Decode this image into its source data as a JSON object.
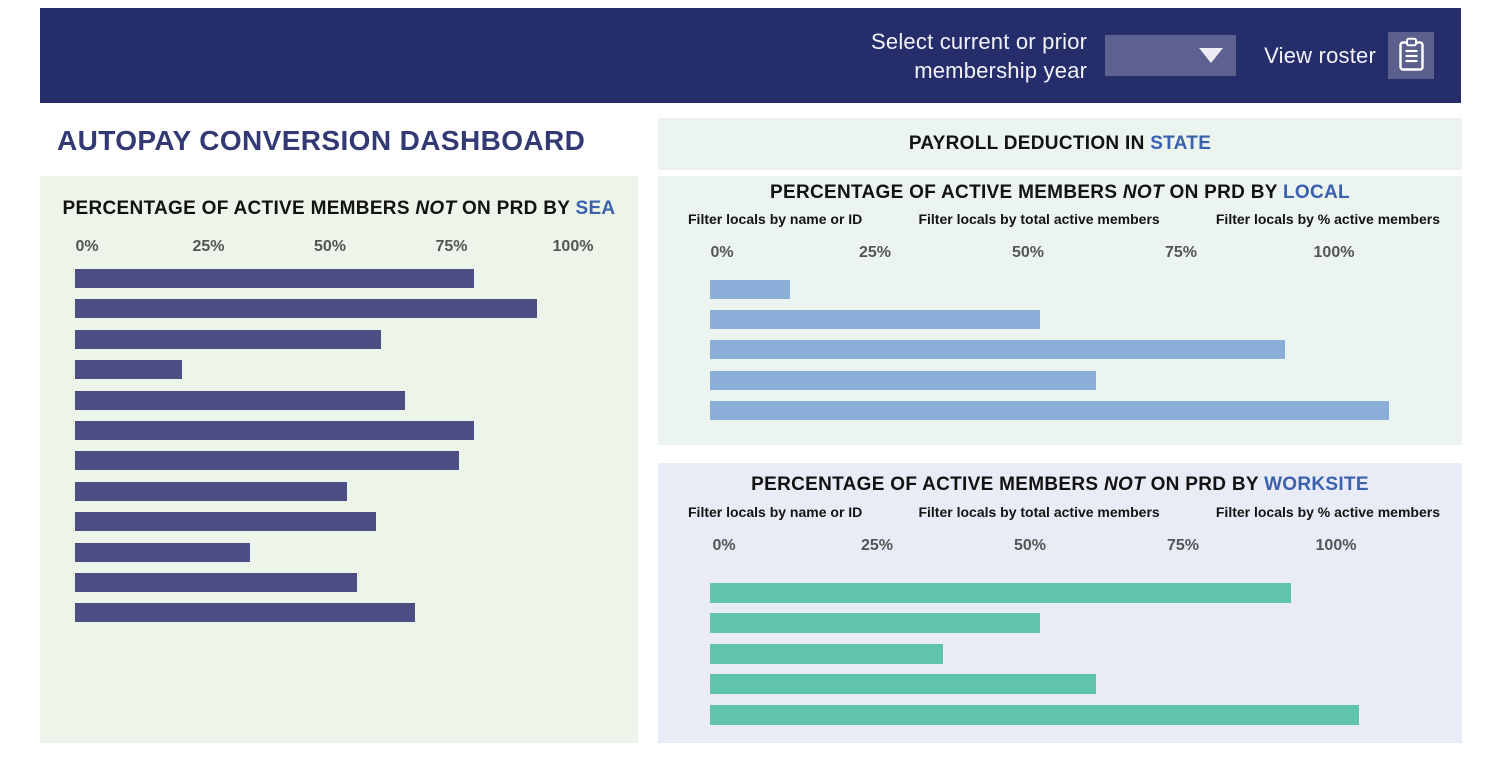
{
  "header": {
    "select_label_line1": "Select current or prior",
    "select_label_line2": "membership year",
    "dropdown_value": "",
    "view_roster_label": "View roster"
  },
  "page_title": "AUTOPAY CONVERSION DASHBOARD",
  "state_banner": {
    "prefix": "PAYROLL DEDUCTION IN ",
    "accent": "STATE"
  },
  "colors": {
    "header_bar": "#262d6b",
    "control_fill": "#5d6190",
    "roster_button_fill": "#5a5f8c",
    "page_title": "#333a73",
    "accent_blue": "#3a60ae",
    "sea_panel": "#edf4e9",
    "local_panel": "#ecf4ef",
    "worksite_panel": "#e9ecf6",
    "sea_bar": "#4b4f83",
    "local_bar": "#8aaed8",
    "worksite_bar": "#5fc3ae"
  },
  "chart_data": [
    {
      "id": "sea",
      "type": "bar",
      "orientation": "horizontal",
      "title": {
        "prefix": "PERCENTAGE OF ACTIVE MEMBERS ",
        "italic": "NOT",
        "middle": " ON PRD BY ",
        "accent": "SEA"
      },
      "x_ticks": [
        "0%",
        "25%",
        "50%",
        "75%",
        "100%"
      ],
      "xlim": [
        0,
        100
      ],
      "values": [
        82,
        95,
        63,
        22,
        68,
        82,
        79,
        56,
        62,
        36,
        58,
        70
      ],
      "bar_color": "#4b4f83",
      "legend": "none",
      "grid": false
    },
    {
      "id": "local",
      "type": "bar",
      "orientation": "horizontal",
      "title": {
        "prefix": "PERCENTAGE OF ACTIVE MEMBERS ",
        "italic": "NOT",
        "middle": " ON PRD BY ",
        "accent": "LOCAL"
      },
      "filters": [
        "Filter locals by name or ID",
        "Filter locals by total active members",
        "Filter locals by % active members"
      ],
      "x_ticks": [
        "0%",
        "25%",
        "50%",
        "75%",
        "100%"
      ],
      "xlim": [
        0,
        100
      ],
      "values": [
        13,
        54,
        94,
        63,
        111
      ],
      "bar_color": "#8aaed8",
      "legend": "none",
      "grid": false
    },
    {
      "id": "worksite",
      "type": "bar",
      "orientation": "horizontal",
      "title": {
        "prefix": "PERCENTAGE OF ACTIVE MEMBERS ",
        "italic": "NOT",
        "middle": " ON PRD BY ",
        "accent": "WORKSITE"
      },
      "filters": [
        "Filter locals by name or ID",
        "Filter locals by total active members",
        "Filter locals by % active members"
      ],
      "x_ticks": [
        "0%",
        "25%",
        "50%",
        "75%",
        "100%"
      ],
      "xlim": [
        0,
        100
      ],
      "values": [
        95,
        54,
        38,
        63,
        106
      ],
      "bar_color": "#5fc3ae",
      "legend": "none",
      "grid": false
    }
  ]
}
